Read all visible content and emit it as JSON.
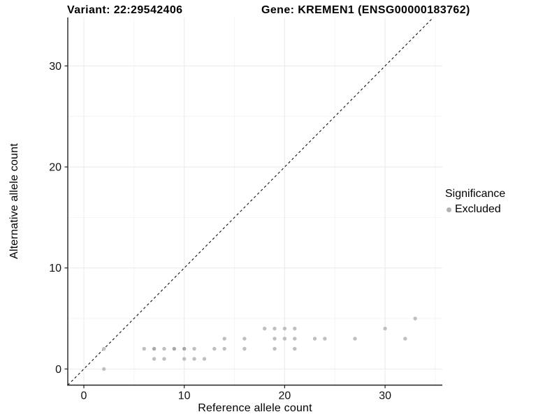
{
  "colors": {
    "background": "#ffffff",
    "axis_line": "#222222",
    "grid_major": "#e9e9e9",
    "grid_minor": "#f4f4f4",
    "tick_text": "#111111",
    "point": "#bfbfbf",
    "point_overplot": "#a9a9a9",
    "identity_line": "#111111",
    "legend_key": "#b3b3b3"
  },
  "legend": {
    "title": "Significance",
    "items": [
      {
        "label": "Excluded",
        "marker": "dot",
        "marker_color": "#b3b3b3"
      }
    ]
  },
  "chart_data": {
    "type": "scatter",
    "title_left": "Variant: 22:29542406",
    "title_right": "Gene: KREMEN1 (ENSG00000183762)",
    "xlabel": "Reference allele count",
    "ylabel": "Alternative allele count",
    "xlim": [
      -1.6,
      35.7
    ],
    "ylim": [
      -1.6,
      34.8
    ],
    "x_ticks": [
      0,
      10,
      20,
      30
    ],
    "y_ticks": [
      0,
      10,
      20,
      30
    ],
    "x_minor_ticks": [
      5,
      15,
      25,
      35
    ],
    "y_minor_ticks": [
      5,
      15,
      25
    ],
    "grid": "major+minor",
    "legend_position": "right",
    "identity_line": {
      "type": "abline",
      "slope": 1,
      "intercept": 0,
      "style": "dashed"
    },
    "series": [
      {
        "name": "Excluded",
        "color": "#bfbfbf",
        "points": [
          [
            2,
            0
          ],
          [
            7,
            1
          ],
          [
            8,
            1
          ],
          [
            10,
            1
          ],
          [
            11,
            1
          ],
          [
            12,
            1
          ],
          [
            2,
            2
          ],
          [
            6,
            2
          ],
          [
            7,
            2
          ],
          [
            8,
            2
          ],
          [
            9,
            2
          ],
          [
            10,
            2
          ],
          [
            11,
            2
          ],
          [
            13,
            2
          ],
          [
            14,
            2
          ],
          [
            16,
            2
          ],
          [
            19,
            2
          ],
          [
            21,
            2
          ],
          [
            14,
            3
          ],
          [
            16,
            3
          ],
          [
            19,
            3
          ],
          [
            20,
            3
          ],
          [
            21,
            3
          ],
          [
            23,
            3
          ],
          [
            24,
            3
          ],
          [
            27,
            3
          ],
          [
            32,
            3
          ],
          [
            18,
            4
          ],
          [
            19,
            4
          ],
          [
            20,
            4
          ],
          [
            21,
            4
          ],
          [
            30,
            4
          ],
          [
            33,
            5
          ]
        ],
        "overplotted_points": [
          [
            7,
            2
          ],
          [
            9,
            2
          ],
          [
            10,
            2
          ]
        ]
      }
    ]
  }
}
